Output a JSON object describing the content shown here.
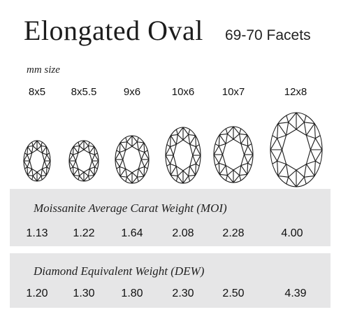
{
  "header": {
    "title": "Elongated Oval",
    "facets": "69-70 Facets",
    "mm_label": "mm size"
  },
  "sizes": [
    "8x5",
    "8x5.5",
    "9x6",
    "10x6",
    "10x7",
    "12x8"
  ],
  "stones": [
    {
      "shape": "oval-facet-icon"
    },
    {
      "shape": "oval-facet-icon"
    },
    {
      "shape": "oval-facet-icon"
    },
    {
      "shape": "oval-facet-icon"
    },
    {
      "shape": "oval-facet-icon"
    },
    {
      "shape": "oval-facet-icon"
    }
  ],
  "moissanite": {
    "title": "Moissanite Average Carat Weight (MOI)",
    "values": [
      "1.13",
      "1.22",
      "1.64",
      "2.08",
      "2.28",
      "4.00"
    ]
  },
  "diamond": {
    "title": "Diamond Equivalent Weight (DEW)",
    "values": [
      "1.20",
      "1.30",
      "1.80",
      "2.30",
      "2.50",
      "4.39"
    ]
  },
  "colors": {
    "panel": "#e6e6e7",
    "line": "#1a1a1a"
  }
}
